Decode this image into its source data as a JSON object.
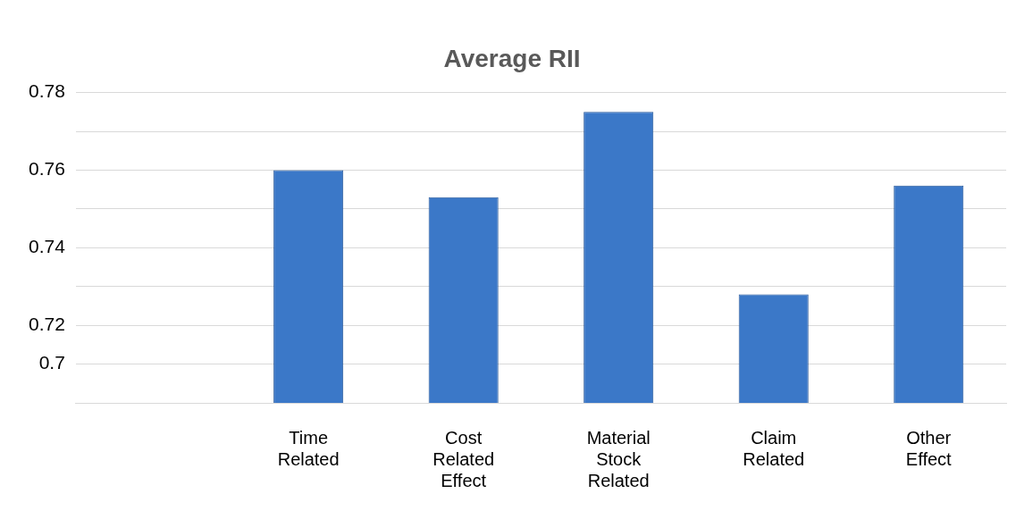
{
  "chart_data": {
    "type": "bar",
    "title": "Average RII",
    "categories": [
      null,
      "Time Related",
      "Cost Related Effect",
      "Material Stock Related",
      "Claim Related",
      "Other Effect"
    ],
    "values": [
      null,
      0.76,
      0.753,
      0.775,
      0.728,
      0.756
    ],
    "color": "#3b78c8",
    "ylim": [
      0.7,
      0.78
    ],
    "yticks": [
      {
        "value": 0.71,
        "label": "0.7"
      },
      {
        "value": 0.72,
        "label": "0.72"
      },
      {
        "value": 0.73,
        "label": null
      },
      {
        "value": 0.74,
        "label": "0.74"
      },
      {
        "value": 0.75,
        "label": null
      },
      {
        "value": 0.76,
        "label": "0.76"
      },
      {
        "value": 0.77,
        "label": null
      },
      {
        "value": 0.78,
        "label": "0.78"
      }
    ],
    "grid": "y"
  }
}
